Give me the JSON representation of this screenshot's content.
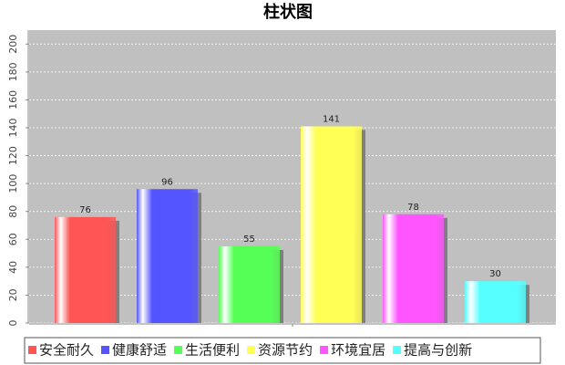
{
  "chart_data": {
    "type": "bar",
    "title": "柱状图",
    "categories": [
      null
    ],
    "series": [
      {
        "name": "安全耐久",
        "color": "#ff5555",
        "values": [
          76
        ]
      },
      {
        "name": "健康舒适",
        "color": "#5555ff",
        "values": [
          96
        ]
      },
      {
        "name": "生活便利",
        "color": "#55ff55",
        "values": [
          55
        ]
      },
      {
        "name": "资源节约",
        "color": "#ffff55",
        "values": [
          141
        ]
      },
      {
        "name": "环境宜居",
        "color": "#ff55ff",
        "values": [
          78
        ]
      },
      {
        "name": "提高与创新",
        "color": "#55ffff",
        "values": [
          30
        ]
      }
    ],
    "ylim": [
      0,
      210
    ],
    "yticks": [
      0,
      20,
      40,
      60,
      80,
      100,
      120,
      140,
      160,
      180,
      200
    ],
    "grid": true,
    "legend": "bottom"
  }
}
